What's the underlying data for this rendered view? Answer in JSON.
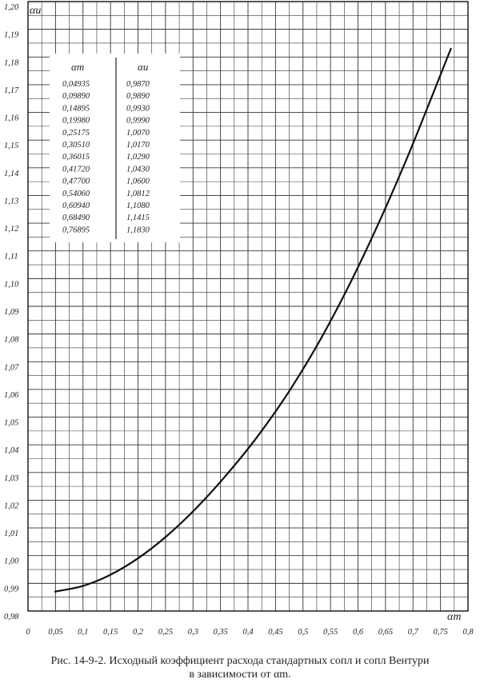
{
  "chart_data": {
    "type": "line",
    "title": "",
    "xlabel": "αm",
    "ylabel": "αи",
    "xlim": [
      0,
      0.8
    ],
    "ylim": [
      0.98,
      1.2
    ],
    "x_ticks": [
      "0",
      "0,05",
      "0,1",
      "0,15",
      "0,2",
      "0,25",
      "0,3",
      "0,35",
      "0,4",
      "0,45",
      "0,5",
      "0,55",
      "0,6",
      "0,65",
      "0,7",
      "0,75",
      "0,8"
    ],
    "y_ticks": [
      "0,98",
      "0,99",
      "1,00",
      "1,01",
      "1,02",
      "1,03",
      "1,04",
      "1,05",
      "1,06",
      "1,07",
      "1,08",
      "1,09",
      "1,10",
      "1,11",
      "1,12",
      "1,13",
      "1,14",
      "1,15",
      "1,16",
      "1,17",
      "1,18",
      "1,19",
      "1,20"
    ],
    "grid": true,
    "series": [
      {
        "x": [
          0.04935,
          0.0989,
          0.14895,
          0.1998,
          0.25175,
          0.3051,
          0.36015,
          0.4172,
          0.477,
          0.5406,
          0.6094,
          0.6849,
          0.76895
        ],
        "y": [
          0.987,
          0.989,
          0.993,
          0.999,
          1.007,
          1.017,
          1.029,
          1.043,
          1.06,
          1.0812,
          1.108,
          1.1415,
          1.183
        ]
      }
    ],
    "table": {
      "headers": [
        "αm",
        "αи"
      ],
      "rows": [
        [
          "0,04935",
          "0,9870"
        ],
        [
          "0,09890",
          "0,9890"
        ],
        [
          "0,14895",
          "0,9930"
        ],
        [
          "0,19980",
          "0,9990"
        ],
        [
          "0,25175",
          "1,0070"
        ],
        [
          "0,30510",
          "1,0170"
        ],
        [
          "0,36015",
          "1,0290"
        ],
        [
          "0,41720",
          "1,0430"
        ],
        [
          "0,47700",
          "1,0600"
        ],
        [
          "0,54060",
          "1,0812"
        ],
        [
          "0,60940",
          "1,1080"
        ],
        [
          "0,68490",
          "1,1415"
        ],
        [
          "0,76895",
          "1,1830"
        ]
      ]
    }
  },
  "caption": {
    "line1": "Рис. 14-9-2. Исходный коэффициент расхода стандартных сопл и сопл Вентури",
    "line2": "в зависимости от αm."
  }
}
